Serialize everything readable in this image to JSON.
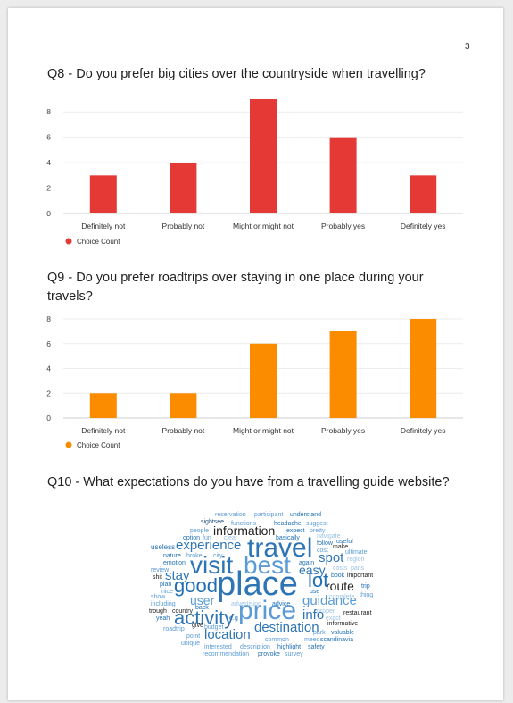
{
  "page_number": "3",
  "questions": {
    "q8": {
      "title": "Q8 - Do you prefer big cities over the countryside when travelling?"
    },
    "q9": {
      "title": "Q9 - Do you prefer roadtrips over staying in one place during your travels?"
    },
    "q10": {
      "title": "Q10 - What expectations do you have from a travelling guide website?"
    }
  },
  "chart_data": [
    {
      "type": "bar",
      "title": "Q8 - Do you prefer big cities over the countryside when travelling?",
      "categories": [
        "Definitely not",
        "Probably not",
        "Might or might not",
        "Probably yes",
        "Definitely yes"
      ],
      "series": [
        {
          "name": "Choice Count",
          "values": [
            3,
            4,
            9,
            6,
            3
          ],
          "color": "#e53935"
        }
      ],
      "yticks": [
        0,
        2,
        4,
        6,
        8
      ],
      "ylim": [
        0,
        9
      ],
      "grid": true,
      "legend": "bottom-left"
    },
    {
      "type": "bar",
      "title": "Q9 - Do you prefer roadtrips over staying in one place during your travels?",
      "categories": [
        "Definitely not",
        "Probably not",
        "Might or might not",
        "Probably yes",
        "Definitely yes"
      ],
      "series": [
        {
          "name": "Choice Count",
          "values": [
            2,
            2,
            6,
            7,
            8
          ],
          "color": "#fb8c00"
        }
      ],
      "yticks": [
        0,
        2,
        4,
        6,
        8
      ],
      "ylim": [
        0,
        8
      ],
      "grid": true,
      "legend": "bottom-left"
    }
  ],
  "word_cloud": {
    "words": [
      "reservation",
      "participant",
      "understand",
      "sightsee",
      "functions",
      "headache",
      "suggest",
      "information",
      "people",
      "expect",
      "pretty",
      "option",
      "fun",
      "clear",
      "basically",
      "navigate",
      "useless",
      "experience",
      "travel",
      "follow",
      "useful",
      "cost",
      "make",
      "nature",
      "broke",
      "city",
      "spot",
      "ultimate",
      "emotion",
      "visit",
      "best",
      "region",
      "review",
      "again",
      "easy",
      "costs",
      "pans",
      "shit",
      "stay",
      "lot",
      "book",
      "important",
      "plan",
      "route",
      "trip",
      "good",
      "place",
      "nice",
      "guidance",
      "complete",
      "thing",
      "show",
      "user",
      "use",
      "back",
      "advertising",
      "advice",
      "including",
      "trough",
      "country",
      "price",
      "proper",
      "info",
      "exact",
      "restaurant",
      "activity",
      "yeah",
      "e.g",
      "informative",
      "roadtrip",
      "give",
      "budget",
      "destination",
      "location",
      "park",
      "valuable",
      "point",
      "common",
      "meed",
      "scandinavia",
      "unique",
      "interested",
      "description",
      "highlight",
      "safety",
      "recommendation",
      "provoke",
      "survey"
    ]
  }
}
